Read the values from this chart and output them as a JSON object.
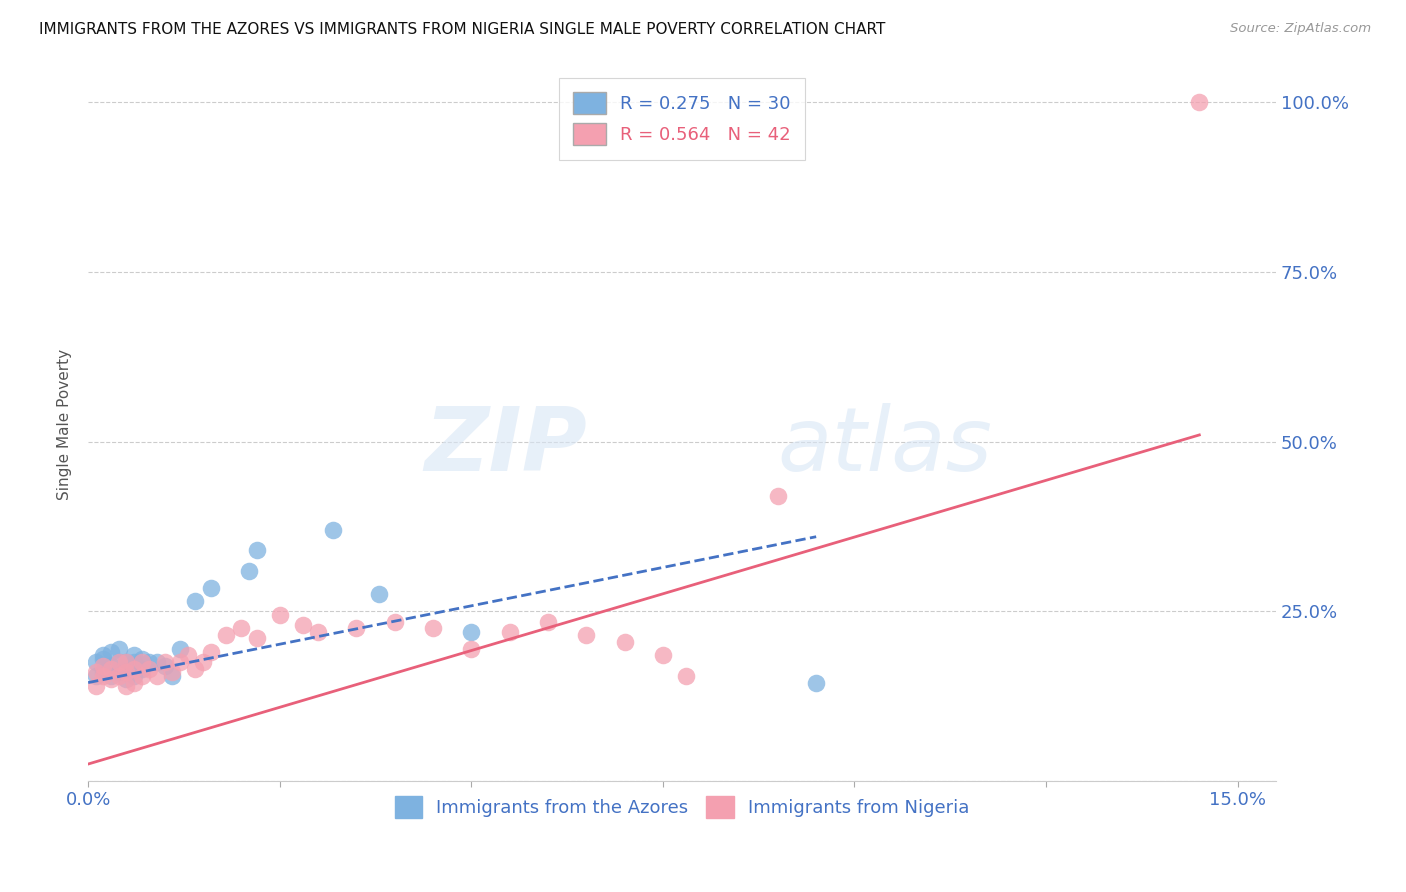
{
  "title": "IMMIGRANTS FROM THE AZORES VS IMMIGRANTS FROM NIGERIA SINGLE MALE POVERTY CORRELATION CHART",
  "source": "Source: ZipAtlas.com",
  "ylabel_label": "Single Male Poverty",
  "ylim": [
    0.0,
    1.05
  ],
  "xlim": [
    0.0,
    0.155
  ],
  "legend_label_azores": "Immigrants from the Azores",
  "legend_label_nigeria": "Immigrants from Nigeria",
  "color_azores": "#7EB2E0",
  "color_nigeria": "#F4A0B0",
  "line_color_azores": "#4472C4",
  "line_color_nigeria": "#E8607A",
  "color_text": "#4472C4",
  "background_color": "#FFFFFF",
  "azores_x": [
    0.001,
    0.001,
    0.002,
    0.002,
    0.002,
    0.003,
    0.003,
    0.003,
    0.004,
    0.004,
    0.004,
    0.005,
    0.005,
    0.005,
    0.006,
    0.006,
    0.006,
    0.007,
    0.007,
    0.008,
    0.009,
    0.01,
    0.011,
    0.012,
    0.014,
    0.016,
    0.021,
    0.022,
    0.032,
    0.038,
    0.05,
    0.095
  ],
  "azores_y": [
    0.155,
    0.175,
    0.16,
    0.18,
    0.185,
    0.155,
    0.17,
    0.19,
    0.16,
    0.175,
    0.195,
    0.15,
    0.165,
    0.175,
    0.155,
    0.175,
    0.185,
    0.165,
    0.18,
    0.175,
    0.175,
    0.17,
    0.155,
    0.195,
    0.265,
    0.285,
    0.31,
    0.34,
    0.37,
    0.275,
    0.22,
    0.145
  ],
  "nigeria_x": [
    0.001,
    0.001,
    0.002,
    0.002,
    0.003,
    0.003,
    0.004,
    0.004,
    0.005,
    0.005,
    0.005,
    0.006,
    0.006,
    0.007,
    0.007,
    0.008,
    0.009,
    0.01,
    0.011,
    0.012,
    0.013,
    0.014,
    0.015,
    0.016,
    0.018,
    0.02,
    0.022,
    0.025,
    0.028,
    0.03,
    0.035,
    0.04,
    0.045,
    0.05,
    0.055,
    0.06,
    0.065,
    0.07,
    0.075,
    0.078,
    0.09,
    0.145
  ],
  "nigeria_y": [
    0.14,
    0.16,
    0.155,
    0.17,
    0.15,
    0.165,
    0.155,
    0.175,
    0.14,
    0.16,
    0.175,
    0.145,
    0.165,
    0.155,
    0.175,
    0.165,
    0.155,
    0.175,
    0.16,
    0.175,
    0.185,
    0.165,
    0.175,
    0.19,
    0.215,
    0.225,
    0.21,
    0.245,
    0.23,
    0.22,
    0.225,
    0.235,
    0.225,
    0.195,
    0.22,
    0.235,
    0.215,
    0.205,
    0.185,
    0.155,
    0.42,
    1.0
  ],
  "azores_line_x": [
    0.0,
    0.095
  ],
  "azores_line_y": [
    0.145,
    0.36
  ],
  "nigeria_line_x": [
    0.0,
    0.145
  ],
  "nigeria_line_y": [
    0.025,
    0.51
  ]
}
